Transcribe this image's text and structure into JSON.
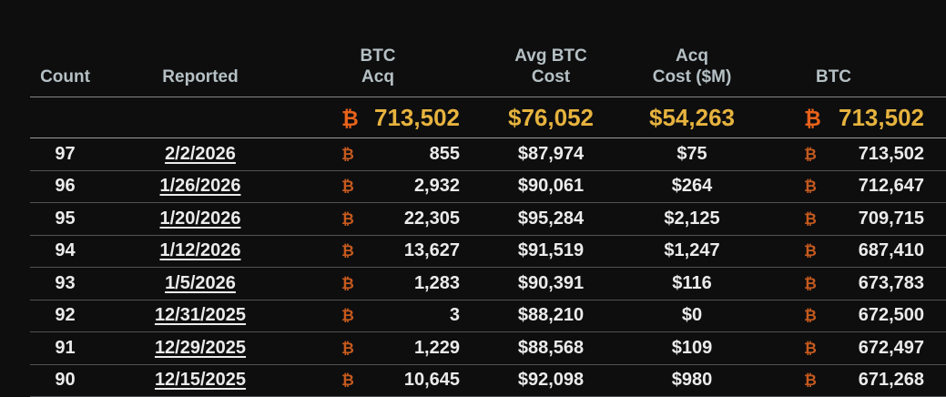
{
  "colors": {
    "background": "#0e0e0f",
    "header_text": "#b5c0c4",
    "row_text": "#ebebeb",
    "gold": "#e6b33e",
    "bitcoin_orange": "#e8621a",
    "bitcoin_orange_dim": "#c65a1e",
    "header_line": "#84888a",
    "summary_line": "#9a9da0",
    "row_line": "#505254"
  },
  "table": {
    "currency_symbol": "₿",
    "columns": [
      {
        "id": "count",
        "label": "Count"
      },
      {
        "id": "reported",
        "label": "Reported"
      },
      {
        "id": "btc_acq",
        "label": "BTC\nAcq"
      },
      {
        "id": "avg_btc_cost",
        "label": "Avg BTC\nCost"
      },
      {
        "id": "acq_cost_m",
        "label": "Acq\nCost ($M)"
      },
      {
        "id": "btc",
        "label": "BTC"
      }
    ],
    "summary": {
      "btc_acq": "713,502",
      "avg_btc_cost": "$76,052",
      "acq_cost_m": "$54,263",
      "btc": "713,502"
    },
    "rows": [
      {
        "count": "97",
        "reported": "2/2/2026",
        "btc_acq": "855",
        "avg_btc_cost": "$87,974",
        "acq_cost_m": "$75",
        "btc": "713,502"
      },
      {
        "count": "96",
        "reported": "1/26/2026",
        "btc_acq": "2,932",
        "avg_btc_cost": "$90,061",
        "acq_cost_m": "$264",
        "btc": "712,647"
      },
      {
        "count": "95",
        "reported": "1/20/2026",
        "btc_acq": "22,305",
        "avg_btc_cost": "$95,284",
        "acq_cost_m": "$2,125",
        "btc": "709,715"
      },
      {
        "count": "94",
        "reported": "1/12/2026",
        "btc_acq": "13,627",
        "avg_btc_cost": "$91,519",
        "acq_cost_m": "$1,247",
        "btc": "687,410"
      },
      {
        "count": "93",
        "reported": "1/5/2026",
        "btc_acq": "1,283",
        "avg_btc_cost": "$90,391",
        "acq_cost_m": "$116",
        "btc": "673,783"
      },
      {
        "count": "92",
        "reported": "12/31/2025",
        "btc_acq": "3",
        "avg_btc_cost": "$88,210",
        "acq_cost_m": "$0",
        "btc": "672,500"
      },
      {
        "count": "91",
        "reported": "12/29/2025",
        "btc_acq": "1,229",
        "avg_btc_cost": "$88,568",
        "acq_cost_m": "$109",
        "btc": "672,497"
      },
      {
        "count": "90",
        "reported": "12/15/2025",
        "btc_acq": "10,645",
        "avg_btc_cost": "$92,098",
        "acq_cost_m": "$980",
        "btc": "671,268"
      }
    ]
  }
}
